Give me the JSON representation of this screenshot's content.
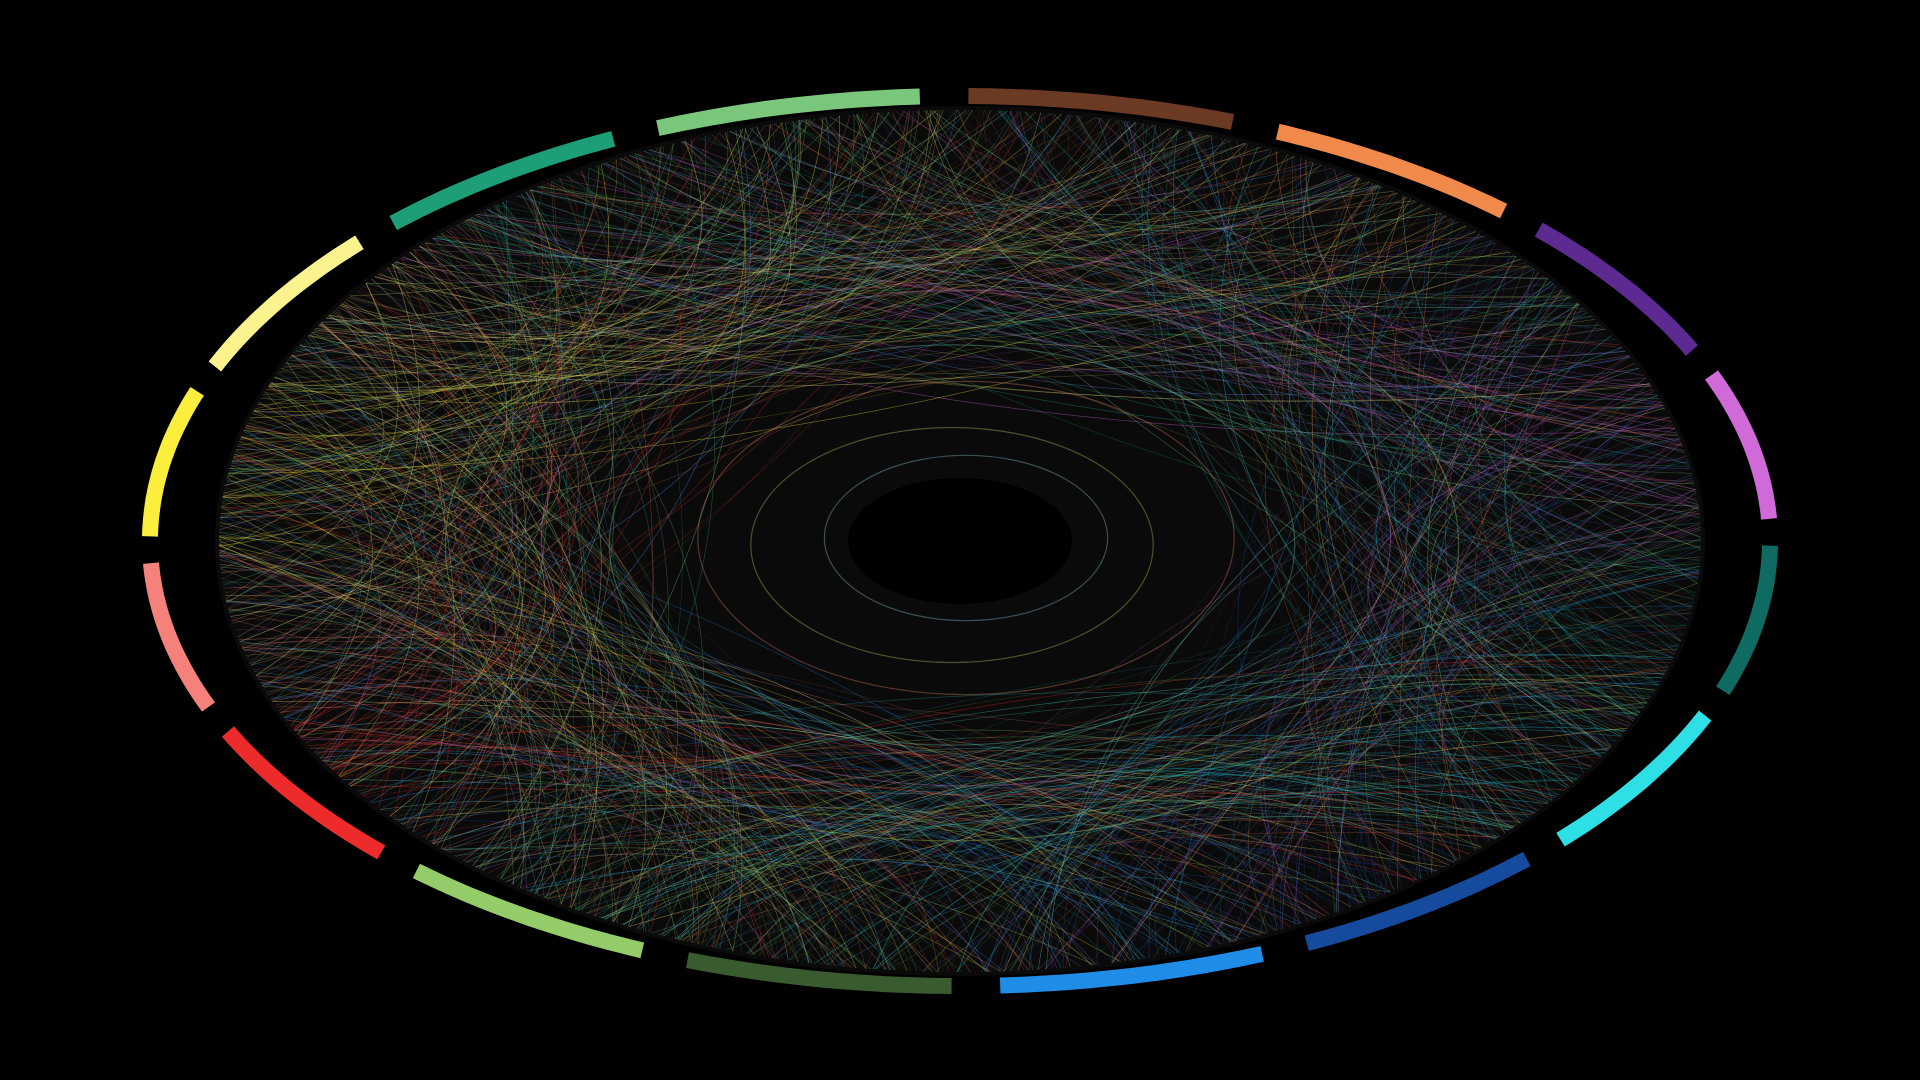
{
  "background_color": "#000000",
  "ring_background_color": "#0a0a0a",
  "center_hole_color": "#000000",
  "segments": [
    {
      "name": "segment-light-green-top",
      "color": "#7ac77c"
    },
    {
      "name": "segment-brown",
      "color": "#6a3a22"
    },
    {
      "name": "segment-orange",
      "color": "#f0894a"
    },
    {
      "name": "segment-indigo",
      "color": "#5d2a91"
    },
    {
      "name": "segment-magenta",
      "color": "#d06ad8"
    },
    {
      "name": "segment-dark-teal",
      "color": "#0f6b62"
    },
    {
      "name": "segment-cyan",
      "color": "#2ee0e6"
    },
    {
      "name": "segment-navy-blue",
      "color": "#154a9c"
    },
    {
      "name": "segment-azure",
      "color": "#1f8de8"
    },
    {
      "name": "segment-dark-green",
      "color": "#3a5a30"
    },
    {
      "name": "segment-lime-green",
      "color": "#94cc6a"
    },
    {
      "name": "segment-red",
      "color": "#ee2b2b"
    },
    {
      "name": "segment-salmon",
      "color": "#f4817a"
    },
    {
      "name": "segment-yellow",
      "color": "#fbee3d"
    },
    {
      "name": "segment-pale-yellow",
      "color": "#fbf48e"
    },
    {
      "name": "segment-teal-green",
      "color": "#1e9e78"
    }
  ],
  "link_palette": [
    "#c8d86a",
    "#e06b4a",
    "#3aa0c8",
    "#8ad06a",
    "#c06ad8",
    "#4ac8b0",
    "#e8c85a",
    "#5a8ae8",
    "#e85a5a",
    "#7ad8d0"
  ]
}
